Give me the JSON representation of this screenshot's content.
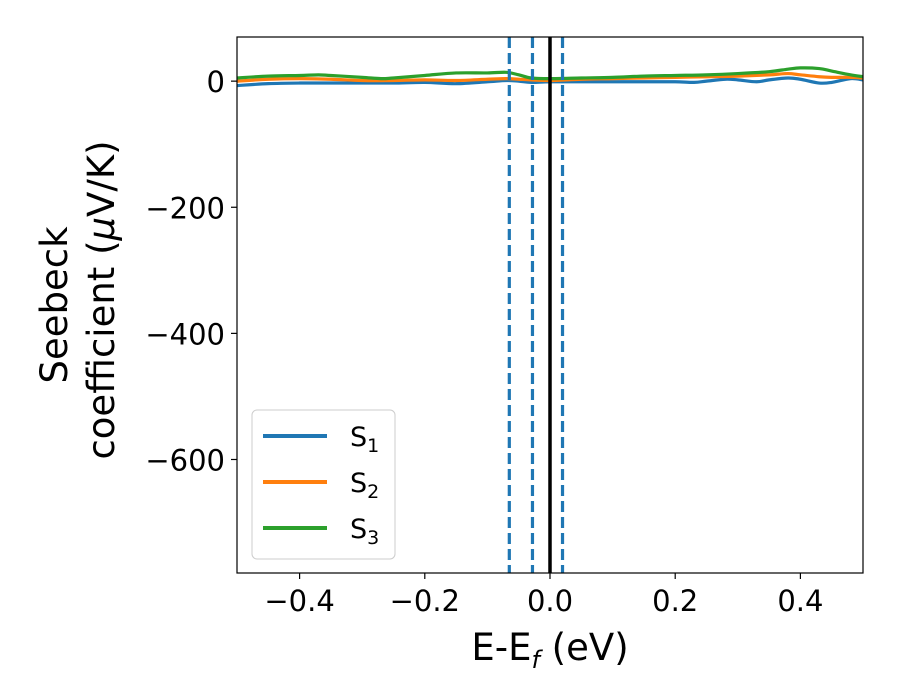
{
  "chart_data": {
    "type": "line",
    "title": "",
    "xlabel": {
      "main": "E-E",
      "sub": "f",
      "unit": " (eV)"
    },
    "ylabel": {
      "line1": "Seebeck",
      "line2_text": "coefficient  (",
      "line2_greek": "μ",
      "line2_unit": "V/K)"
    },
    "xlim": [
      -0.5,
      0.5
    ],
    "ylim": [
      -780,
      70
    ],
    "xticks": [
      -0.4,
      -0.2,
      0.0,
      0.2,
      0.4
    ],
    "xtick_labels": [
      "−0.4",
      "−0.2",
      "0.0",
      "0.2",
      "0.4"
    ],
    "yticks": [
      0,
      -200,
      -400,
      -600
    ],
    "ytick_labels": [
      "0",
      "−200",
      "−400",
      "−600"
    ],
    "grid": false,
    "legend": {
      "placement": "lower-left"
    },
    "series": [
      {
        "name": "S",
        "sub": "1",
        "color": "#1f77b4",
        "x": [
          -0.5,
          -0.45,
          -0.4,
          -0.35,
          -0.3,
          -0.25,
          -0.2,
          -0.15,
          -0.1,
          -0.07,
          -0.05,
          -0.03,
          0.0,
          0.05,
          0.1,
          0.15,
          0.2,
          0.23,
          0.25,
          0.28,
          0.3,
          0.33,
          0.35,
          0.38,
          0.4,
          0.43,
          0.45,
          0.48,
          0.5
        ],
        "values": [
          -7,
          -4,
          -3,
          -3,
          -3,
          -3,
          -2,
          -4,
          -1,
          1,
          0,
          -2,
          -1,
          -1,
          -1,
          -1,
          -1,
          -2,
          0,
          3,
          2,
          -1,
          2,
          5,
          3,
          -3,
          -2,
          4,
          2
        ]
      },
      {
        "name": "S",
        "sub": "2",
        "color": "#ff7f0e",
        "x": [
          -0.5,
          -0.45,
          -0.4,
          -0.35,
          -0.3,
          -0.25,
          -0.2,
          -0.15,
          -0.1,
          -0.07,
          -0.05,
          -0.03,
          0.0,
          0.05,
          0.1,
          0.15,
          0.2,
          0.25,
          0.3,
          0.35,
          0.38,
          0.4,
          0.43,
          0.45,
          0.48,
          0.5
        ],
        "values": [
          0,
          3,
          4,
          3,
          1,
          1,
          2,
          1,
          3,
          4,
          3,
          2,
          1,
          3,
          4,
          5,
          6,
          7,
          8,
          10,
          12,
          10,
          7,
          6,
          6,
          5
        ]
      },
      {
        "name": "S",
        "sub": "3",
        "color": "#2ca02c",
        "x": [
          -0.5,
          -0.45,
          -0.4,
          -0.37,
          -0.35,
          -0.3,
          -0.27,
          -0.25,
          -0.2,
          -0.15,
          -0.1,
          -0.07,
          -0.05,
          -0.03,
          0.0,
          0.05,
          0.1,
          0.15,
          0.2,
          0.25,
          0.3,
          0.35,
          0.38,
          0.4,
          0.43,
          0.45,
          0.48,
          0.5
        ],
        "values": [
          5,
          8,
          9,
          10,
          9,
          6,
          4,
          5,
          9,
          13,
          13,
          14,
          10,
          5,
          4,
          5,
          6,
          8,
          9,
          10,
          12,
          15,
          19,
          21,
          20,
          16,
          10,
          7
        ]
      }
    ],
    "vlines": [
      {
        "x": -0.065,
        "style": "dashed",
        "color": "#1f77b4"
      },
      {
        "x": -0.028,
        "style": "dashed",
        "color": "#1f77b4"
      },
      {
        "x": 0.02,
        "style": "dashed",
        "color": "#1f77b4"
      },
      {
        "x": 0.0,
        "style": "solid",
        "color": "#000000"
      }
    ]
  }
}
